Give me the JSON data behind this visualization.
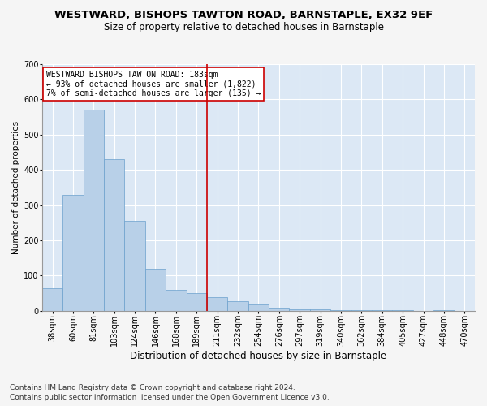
{
  "title": "WESTWARD, BISHOPS TAWTON ROAD, BARNSTAPLE, EX32 9EF",
  "subtitle": "Size of property relative to detached houses in Barnstaple",
  "xlabel": "Distribution of detached houses by size in Barnstaple",
  "ylabel": "Number of detached properties",
  "footer1": "Contains HM Land Registry data © Crown copyright and database right 2024.",
  "footer2": "Contains public sector information licensed under the Open Government Licence v3.0.",
  "categories": [
    "38sqm",
    "60sqm",
    "81sqm",
    "103sqm",
    "124sqm",
    "146sqm",
    "168sqm",
    "189sqm",
    "211sqm",
    "232sqm",
    "254sqm",
    "276sqm",
    "297sqm",
    "319sqm",
    "340sqm",
    "362sqm",
    "384sqm",
    "405sqm",
    "427sqm",
    "448sqm",
    "470sqm"
  ],
  "values": [
    65,
    330,
    570,
    430,
    255,
    120,
    60,
    50,
    40,
    28,
    18,
    10,
    5,
    4,
    3,
    2,
    1,
    1,
    0,
    1,
    0
  ],
  "bar_color": "#b8d0e8",
  "bar_edge_color": "#6aa0cc",
  "vline_x": 7,
  "vline_color": "#cc0000",
  "annotation_line1": "WESTWARD BISHOPS TAWTON ROAD: 183sqm",
  "annotation_line2": "← 93% of detached houses are smaller (1,822)",
  "annotation_line3": "7% of semi-detached houses are larger (135) →",
  "annotation_box_color": "#ffffff",
  "annotation_box_edge": "#cc0000",
  "ylim": [
    0,
    700
  ],
  "yticks": [
    0,
    100,
    200,
    300,
    400,
    500,
    600,
    700
  ],
  "bg_color": "#dce8f5",
  "plot_bg_color": "#dce8f5",
  "fig_bg_color": "#f5f5f5",
  "grid_color": "#ffffff",
  "title_fontsize": 9.5,
  "subtitle_fontsize": 8.5,
  "xlabel_fontsize": 8.5,
  "ylabel_fontsize": 7.5,
  "tick_fontsize": 7,
  "annot_fontsize": 7,
  "footer_fontsize": 6.5
}
